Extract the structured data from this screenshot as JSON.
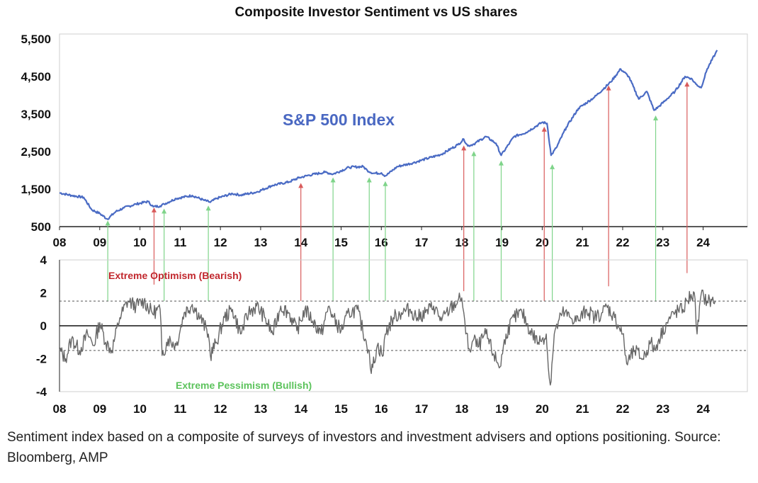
{
  "chart_data": [
    {
      "type": "line",
      "title": "Composite Investor Sentiment vs US shares",
      "series": [
        {
          "name": "S&P 500 Index",
          "color": "#4a6bc4"
        }
      ],
      "x_tick_labels": [
        "08",
        "09",
        "10",
        "11",
        "12",
        "13",
        "14",
        "15",
        "16",
        "17",
        "18",
        "19",
        "20",
        "21",
        "22",
        "23",
        "24"
      ],
      "x_tick_years": [
        2008,
        2009,
        2010,
        2011,
        2012,
        2013,
        2014,
        2015,
        2016,
        2017,
        2018,
        2019,
        2020,
        2021,
        2022,
        2023,
        2024
      ],
      "y_ticks": [
        500,
        1500,
        2500,
        3500,
        4500,
        5500
      ],
      "y_tick_labels": [
        "500",
        "1,500",
        "2,500",
        "3,500",
        "4,500",
        "5,500"
      ],
      "ylim": [
        500,
        5500
      ],
      "xlim": [
        2008.0,
        2025.1
      ],
      "x": [
        2008.0,
        2008.3,
        2008.6,
        2008.8,
        2009.0,
        2009.19,
        2009.4,
        2009.6,
        2009.9,
        2010.2,
        2010.33,
        2010.5,
        2010.6,
        2010.9,
        2011.3,
        2011.6,
        2011.75,
        2011.9,
        2012.3,
        2012.5,
        2012.9,
        2013.3,
        2013.7,
        2013.95,
        2014.2,
        2014.6,
        2014.8,
        2015.2,
        2015.55,
        2015.65,
        2015.8,
        2016.0,
        2016.1,
        2016.4,
        2016.8,
        2017.0,
        2017.5,
        2017.9,
        2018.05,
        2018.15,
        2018.3,
        2018.6,
        2018.85,
        2018.98,
        2019.3,
        2019.6,
        2020.0,
        2020.12,
        2020.22,
        2020.35,
        2020.6,
        2020.9,
        2021.3,
        2021.7,
        2021.95,
        2022.15,
        2022.4,
        2022.6,
        2022.78,
        2022.9,
        2023.1,
        2023.3,
        2023.55,
        2023.7,
        2023.82,
        2023.95,
        2024.1,
        2024.3,
        2024.35
      ],
      "y": [
        1400,
        1330,
        1280,
        950,
        850,
        700,
        900,
        1000,
        1100,
        1170,
        1030,
        1050,
        1100,
        1250,
        1330,
        1200,
        1150,
        1250,
        1380,
        1340,
        1420,
        1600,
        1690,
        1800,
        1870,
        1950,
        1900,
        2080,
        2100,
        2000,
        1920,
        1930,
        1850,
        2100,
        2200,
        2270,
        2430,
        2680,
        2830,
        2650,
        2700,
        2900,
        2720,
        2400,
        2900,
        3010,
        3280,
        3250,
        2400,
        2600,
        3150,
        3650,
        3950,
        4350,
        4700,
        4500,
        3900,
        4100,
        3600,
        3700,
        3900,
        4100,
        4500,
        4450,
        4300,
        4200,
        4700,
        5100,
        5200
      ]
    },
    {
      "type": "line",
      "series": [
        {
          "name": "Composite Investor Sentiment",
          "color": "#666666"
        }
      ],
      "x_tick_labels": [
        "08",
        "09",
        "10",
        "11",
        "12",
        "13",
        "14",
        "15",
        "16",
        "17",
        "18",
        "19",
        "20",
        "21",
        "22",
        "23",
        "24"
      ],
      "x_tick_years": [
        2008,
        2009,
        2010,
        2011,
        2012,
        2013,
        2014,
        2015,
        2016,
        2017,
        2018,
        2019,
        2020,
        2021,
        2022,
        2023,
        2024
      ],
      "y_ticks": [
        -4,
        -2,
        0,
        2,
        4
      ],
      "y_tick_labels": [
        "-4",
        "-2",
        "0",
        "2",
        "4"
      ],
      "ylim": [
        -4,
        4
      ],
      "xlim": [
        2008.0,
        2025.1
      ],
      "x": [
        2008.0,
        2008.15,
        2008.3,
        2008.5,
        2008.7,
        2008.85,
        2009.0,
        2009.15,
        2009.3,
        2009.5,
        2009.7,
        2009.9,
        2010.1,
        2010.3,
        2010.5,
        2010.55,
        2010.7,
        2010.9,
        2011.1,
        2011.3,
        2011.5,
        2011.7,
        2011.75,
        2011.9,
        2012.1,
        2012.3,
        2012.5,
        2012.7,
        2012.9,
        2013.1,
        2013.3,
        2013.5,
        2013.7,
        2013.9,
        2014.1,
        2014.3,
        2014.5,
        2014.7,
        2014.8,
        2015.0,
        2015.2,
        2015.4,
        2015.6,
        2015.7,
        2015.75,
        2015.9,
        2016.05,
        2016.1,
        2016.3,
        2016.5,
        2016.7,
        2016.9,
        2017.1,
        2017.3,
        2017.5,
        2017.7,
        2017.9,
        2018.0,
        2018.05,
        2018.1,
        2018.2,
        2018.3,
        2018.4,
        2018.6,
        2018.8,
        2018.95,
        2019.1,
        2019.3,
        2019.5,
        2019.7,
        2019.9,
        2020.0,
        2020.1,
        2020.15,
        2020.2,
        2020.3,
        2020.5,
        2020.7,
        2020.9,
        2021.1,
        2021.3,
        2021.5,
        2021.6,
        2021.8,
        2022.0,
        2022.1,
        2022.3,
        2022.5,
        2022.7,
        2022.8,
        2022.9,
        2023.1,
        2023.3,
        2023.5,
        2023.6,
        2023.7,
        2023.8,
        2023.85,
        2023.95,
        2024.1,
        2024.3
      ],
      "y": [
        -1.5,
        -2.0,
        -0.8,
        -1.5,
        -0.5,
        -1.2,
        0.2,
        -1.0,
        -1.5,
        0.5,
        1.5,
        1.2,
        1.5,
        0.8,
        1.0,
        -1.8,
        -0.8,
        -1.2,
        0.8,
        1.3,
        0.5,
        -0.5,
        -1.8,
        -1.0,
        0.5,
        1.0,
        -0.5,
        0.8,
        1.2,
        0.5,
        -0.5,
        1.2,
        0.8,
        -0.3,
        1.0,
        0.3,
        -0.5,
        1.2,
        0.5,
        -0.3,
        0.8,
        1.0,
        -0.8,
        -1.5,
        -2.9,
        -1.2,
        -1.8,
        -0.5,
        0.5,
        0.8,
        1.0,
        0.5,
        0.8,
        1.2,
        0.3,
        1.0,
        1.5,
        1.7,
        0.8,
        -0.5,
        -1.5,
        -0.8,
        -1.3,
        -0.5,
        -1.8,
        -2.5,
        -0.5,
        0.5,
        0.8,
        -0.3,
        -1.0,
        -0.8,
        -0.5,
        -2.5,
        -3.6,
        -0.5,
        0.8,
        0.5,
        0.3,
        1.0,
        0.5,
        0.8,
        1.2,
        0.5,
        -0.5,
        -2.3,
        -1.5,
        -2.0,
        -1.0,
        -1.5,
        -0.8,
        0.2,
        0.8,
        1.0,
        1.5,
        1.9,
        1.6,
        -0.5,
        1.9,
        1.5,
        1.5
      ],
      "reference_lines": [
        1.5,
        -1.5
      ],
      "annotations": [
        {
          "text": "Extreme Optimism (Bearish)",
          "kind": "bearish"
        },
        {
          "text": "Extreme Pessimism (Bullish)",
          "kind": "bullish"
        }
      ],
      "signals": [
        {
          "x": 2009.2,
          "kind": "bullish",
          "from_sentiment": 1.5,
          "to_price": 700
        },
        {
          "x": 2010.35,
          "kind": "bearish",
          "from_sentiment": 2.5,
          "to_price": 1050
        },
        {
          "x": 2010.6,
          "kind": "bullish",
          "from_sentiment": 1.5,
          "to_price": 1020
        },
        {
          "x": 2011.7,
          "kind": "bullish",
          "from_sentiment": 1.5,
          "to_price": 1100
        },
        {
          "x": 2014.0,
          "kind": "bearish",
          "from_sentiment": 1.5,
          "to_price": 1700
        },
        {
          "x": 2014.8,
          "kind": "bullish",
          "from_sentiment": 1.5,
          "to_price": 1850
        },
        {
          "x": 2015.7,
          "kind": "bullish",
          "from_sentiment": 1.5,
          "to_price": 1850
        },
        {
          "x": 2016.1,
          "kind": "bullish",
          "from_sentiment": 1.5,
          "to_price": 1750
        },
        {
          "x": 2018.05,
          "kind": "bearish",
          "from_sentiment": 2.1,
          "to_price": 2700
        },
        {
          "x": 2018.3,
          "kind": "bullish",
          "from_sentiment": 1.5,
          "to_price": 2550
        },
        {
          "x": 2018.98,
          "kind": "bullish",
          "from_sentiment": 1.5,
          "to_price": 2300
        },
        {
          "x": 2020.05,
          "kind": "bearish",
          "from_sentiment": 1.5,
          "to_price": 3200
        },
        {
          "x": 2020.25,
          "kind": "bullish",
          "from_sentiment": 1.5,
          "to_price": 2200
        },
        {
          "x": 2021.65,
          "kind": "bearish",
          "from_sentiment": 2.4,
          "to_price": 4300
        },
        {
          "x": 2022.82,
          "kind": "bullish",
          "from_sentiment": 1.5,
          "to_price": 3500
        },
        {
          "x": 2023.6,
          "kind": "bearish",
          "from_sentiment": 3.2,
          "to_price": 4400
        }
      ],
      "signal_colors": {
        "bullish": "#7fd48a",
        "bearish": "#d95b5b"
      }
    }
  ],
  "caption": "Sentiment index based on a composite of surveys of investors and investment advisers and options positioning. Source: Bloomberg, AMP"
}
